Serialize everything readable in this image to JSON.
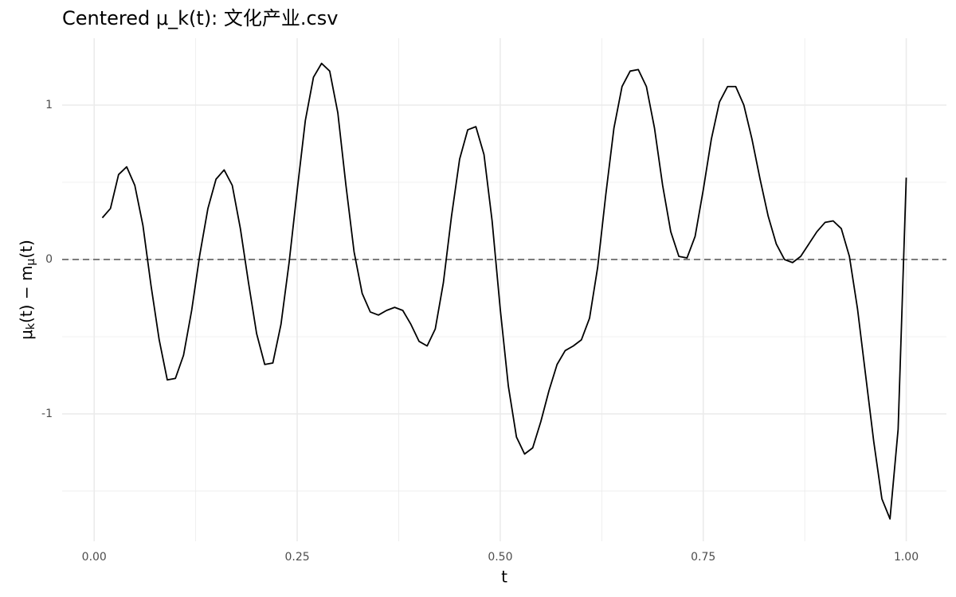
{
  "chart_data": {
    "type": "line",
    "title": "Centered μ_k(t): 文化产业.csv",
    "xlabel": "t",
    "ylabel": [
      "μ",
      "k",
      "(t) − m",
      "μ",
      "(t)"
    ],
    "x": [
      0.01,
      0.02,
      0.03,
      0.04,
      0.05,
      0.06,
      0.07,
      0.08,
      0.09,
      0.1,
      0.11,
      0.12,
      0.13,
      0.14,
      0.15,
      0.16,
      0.17,
      0.18,
      0.19,
      0.2,
      0.21,
      0.22,
      0.23,
      0.24,
      0.25,
      0.26,
      0.27,
      0.28,
      0.29,
      0.3,
      0.31,
      0.32,
      0.33,
      0.34,
      0.35,
      0.36,
      0.37,
      0.38,
      0.39,
      0.4,
      0.41,
      0.42,
      0.43,
      0.44,
      0.45,
      0.46,
      0.47,
      0.48,
      0.49,
      0.5,
      0.51,
      0.52,
      0.53,
      0.54,
      0.55,
      0.56,
      0.57,
      0.58,
      0.59,
      0.6,
      0.61,
      0.62,
      0.63,
      0.64,
      0.65,
      0.66,
      0.67,
      0.68,
      0.69,
      0.7,
      0.71,
      0.72,
      0.73,
      0.74,
      0.75,
      0.76,
      0.77,
      0.78,
      0.79,
      0.8,
      0.81,
      0.82,
      0.83,
      0.84,
      0.85,
      0.86,
      0.87,
      0.88,
      0.89,
      0.9,
      0.91,
      0.92,
      0.93,
      0.94,
      0.95,
      0.96,
      0.97,
      0.98,
      0.99,
      1.0
    ],
    "series": [
      {
        "color": "#000000",
        "values": [
          0.27,
          0.33,
          0.55,
          0.6,
          0.48,
          0.22,
          -0.17,
          -0.52,
          -0.78,
          -0.77,
          -0.62,
          -0.33,
          0.03,
          0.33,
          0.52,
          0.58,
          0.48,
          0.2,
          -0.15,
          -0.48,
          -0.68,
          -0.67,
          -0.42,
          -0.02,
          0.45,
          0.9,
          1.18,
          1.27,
          1.22,
          0.95,
          0.48,
          0.05,
          -0.22,
          -0.34,
          -0.36,
          -0.33,
          -0.31,
          -0.33,
          -0.42,
          -0.53,
          -0.56,
          -0.45,
          -0.15,
          0.28,
          0.65,
          0.84,
          0.86,
          0.68,
          0.25,
          -0.32,
          -0.82,
          -1.15,
          -1.26,
          -1.22,
          -1.05,
          -0.85,
          -0.68,
          -0.59,
          -0.56,
          -0.52,
          -0.38,
          -0.05,
          0.42,
          0.85,
          1.12,
          1.22,
          1.23,
          1.12,
          0.85,
          0.48,
          0.18,
          0.02,
          0.01,
          0.15,
          0.45,
          0.78,
          1.02,
          1.12,
          1.12,
          1.0,
          0.78,
          0.52,
          0.28,
          0.1,
          0.0,
          -0.02,
          0.02,
          0.1,
          0.18,
          0.24,
          0.25,
          0.2,
          0.02,
          -0.32,
          -0.75,
          -1.18,
          -1.55,
          -1.68,
          -1.1,
          0.53
        ]
      }
    ],
    "xlim": [
      -0.0395,
      1.0495
    ],
    "ylim": [
      -1.825,
      1.433
    ],
    "xticks": [
      {
        "value": 0,
        "label": "0.00"
      },
      {
        "value": 0.25,
        "label": "0.25"
      },
      {
        "value": 0.5,
        "label": "0.50"
      },
      {
        "value": 0.75,
        "label": "0.75"
      },
      {
        "value": 1,
        "label": "1.00"
      }
    ],
    "yticks": [
      -1,
      0,
      1
    ],
    "x_minor_ticks": [
      0.125,
      0.375,
      0.625,
      0.875
    ],
    "y_minor_ticks": [
      -1.5,
      -0.5,
      0.5
    ],
    "hline": 0,
    "grid": true
  }
}
